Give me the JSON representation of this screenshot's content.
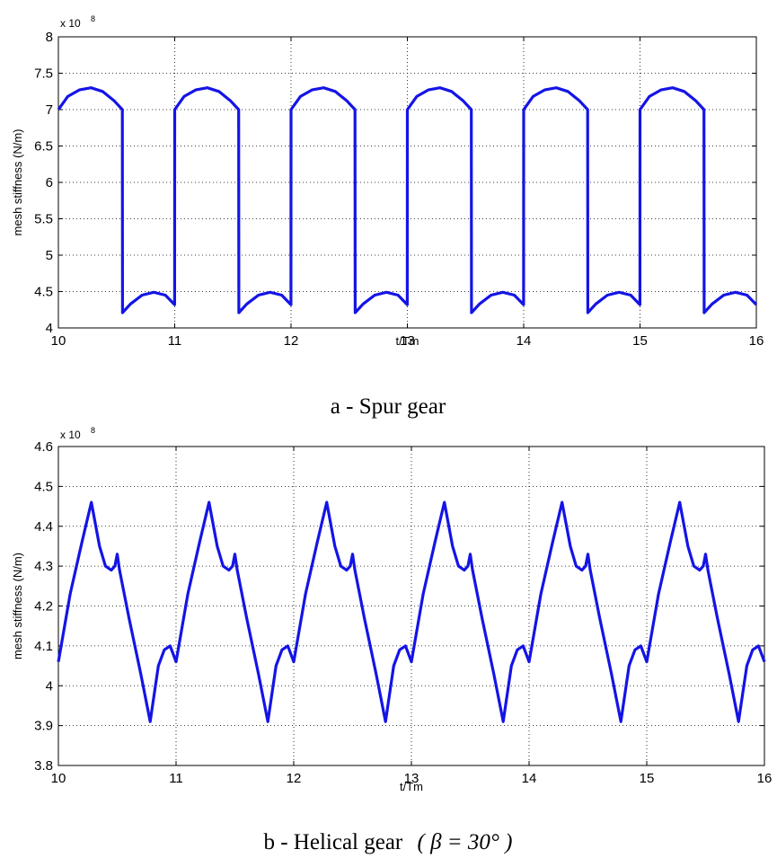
{
  "chart_data": [
    {
      "type": "line",
      "caption": "a - Spur gear",
      "xlabel": "t/Tm",
      "ylabel": "mesh stiffness (N/m)",
      "y_exponent_base": "x 10",
      "y_exponent_power": "8",
      "xlim": [
        10,
        16
      ],
      "ylim": [
        4,
        8
      ],
      "x_ticks": [
        "10",
        "11",
        "12",
        "13",
        "14",
        "15",
        "16"
      ],
      "y_ticks": [
        "4",
        "4.5",
        "5",
        "5.5",
        "6",
        "6.5",
        "7",
        "7.5",
        "8"
      ],
      "grid": true,
      "period": 1,
      "series": [
        {
          "color": "#1414e6",
          "x": [
            10.0,
            10.08,
            10.18,
            10.28,
            10.38,
            10.48,
            10.55,
            10.551,
            10.62,
            10.72,
            10.82,
            10.92,
            10.999,
            11.0,
            11.08,
            11.18,
            11.28,
            11.38,
            11.48,
            11.55,
            11.551,
            11.62,
            11.72,
            11.82,
            11.92,
            11.999,
            12.0,
            12.08,
            12.18,
            12.28,
            12.38,
            12.48,
            12.55,
            12.551,
            12.62,
            12.72,
            12.82,
            12.92,
            12.999,
            13.0,
            13.08,
            13.18,
            13.28,
            13.38,
            13.48,
            13.55,
            13.551,
            13.62,
            13.72,
            13.82,
            13.92,
            13.999,
            14.0,
            14.08,
            14.18,
            14.28,
            14.38,
            14.48,
            14.55,
            14.551,
            14.62,
            14.72,
            14.82,
            14.92,
            14.999,
            15.0,
            15.08,
            15.18,
            15.28,
            15.38,
            15.48,
            15.55,
            15.551,
            15.62,
            15.72,
            15.82,
            15.92,
            16.0
          ],
          "y": [
            7.0,
            7.18,
            7.27,
            7.3,
            7.25,
            7.12,
            7.0,
            4.21,
            4.33,
            4.45,
            4.49,
            4.45,
            4.32,
            7.0,
            7.18,
            7.27,
            7.3,
            7.25,
            7.12,
            7.0,
            4.21,
            4.33,
            4.45,
            4.49,
            4.45,
            4.32,
            7.0,
            7.18,
            7.27,
            7.3,
            7.25,
            7.12,
            7.0,
            4.21,
            4.33,
            4.45,
            4.49,
            4.45,
            4.32,
            7.0,
            7.18,
            7.27,
            7.3,
            7.25,
            7.12,
            7.0,
            4.21,
            4.33,
            4.45,
            4.49,
            4.45,
            4.32,
            7.0,
            7.18,
            7.27,
            7.3,
            7.25,
            7.12,
            7.0,
            4.21,
            4.33,
            4.45,
            4.49,
            4.45,
            4.32,
            7.0,
            7.18,
            7.27,
            7.3,
            7.25,
            7.12,
            7.0,
            4.21,
            4.33,
            4.45,
            4.49,
            4.45,
            4.32
          ]
        }
      ]
    },
    {
      "type": "line",
      "caption_text": "b - Helical gear",
      "caption_math": "( β = 30° )",
      "xlabel": "t/Tm",
      "ylabel": "mesh stiffness (N/m)",
      "y_exponent_base": "x 10",
      "y_exponent_power": "8",
      "xlim": [
        10,
        16
      ],
      "ylim": [
        3.8,
        4.6
      ],
      "x_ticks": [
        "10",
        "11",
        "12",
        "13",
        "14",
        "15",
        "16"
      ],
      "y_ticks": [
        "3.8",
        "3.9",
        "4",
        "4.1",
        "4.2",
        "4.3",
        "4.4",
        "4.5",
        "4.6"
      ],
      "grid": true,
      "series": [
        {
          "color": "#1414e6",
          "x": [
            10.0,
            10.1,
            10.2,
            10.28,
            10.35,
            10.4,
            10.45,
            10.48,
            10.5,
            10.52,
            10.6,
            10.7,
            10.78,
            10.8,
            10.85,
            10.9,
            10.95,
            11.0,
            11.1,
            11.2,
            11.28,
            11.35,
            11.4,
            11.45,
            11.48,
            11.5,
            11.52,
            11.6,
            11.7,
            11.78,
            11.8,
            11.85,
            11.9,
            11.95,
            12.0,
            12.1,
            12.2,
            12.28,
            12.35,
            12.4,
            12.45,
            12.48,
            12.5,
            12.52,
            12.6,
            12.7,
            12.78,
            12.8,
            12.85,
            12.9,
            12.95,
            13.0,
            13.1,
            13.2,
            13.28,
            13.35,
            13.4,
            13.45,
            13.48,
            13.5,
            13.52,
            13.6,
            13.7,
            13.78,
            13.8,
            13.85,
            13.9,
            13.95,
            14.0,
            14.1,
            14.2,
            14.28,
            14.35,
            14.4,
            14.45,
            14.48,
            14.5,
            14.52,
            14.6,
            14.7,
            14.78,
            14.8,
            14.85,
            14.9,
            14.95,
            15.0,
            15.1,
            15.2,
            15.28,
            15.35,
            15.4,
            15.45,
            15.48,
            15.5,
            15.52,
            15.6,
            15.7,
            15.78,
            15.8,
            15.85,
            15.9,
            15.95,
            16.0
          ],
          "y": [
            4.06,
            4.23,
            4.36,
            4.46,
            4.35,
            4.3,
            4.29,
            4.3,
            4.33,
            4.29,
            4.17,
            4.03,
            3.91,
            3.95,
            4.05,
            4.09,
            4.1,
            4.06,
            4.23,
            4.36,
            4.46,
            4.35,
            4.3,
            4.29,
            4.3,
            4.33,
            4.29,
            4.17,
            4.03,
            3.91,
            3.95,
            4.05,
            4.09,
            4.1,
            4.06,
            4.23,
            4.36,
            4.46,
            4.35,
            4.3,
            4.29,
            4.3,
            4.33,
            4.29,
            4.17,
            4.03,
            3.91,
            3.95,
            4.05,
            4.09,
            4.1,
            4.06,
            4.23,
            4.36,
            4.46,
            4.35,
            4.3,
            4.29,
            4.3,
            4.33,
            4.29,
            4.17,
            4.03,
            3.91,
            3.95,
            4.05,
            4.09,
            4.1,
            4.06,
            4.23,
            4.36,
            4.46,
            4.35,
            4.3,
            4.29,
            4.3,
            4.33,
            4.29,
            4.17,
            4.03,
            3.91,
            3.95,
            4.05,
            4.09,
            4.1,
            4.06,
            4.23,
            4.36,
            4.46,
            4.35,
            4.3,
            4.29,
            4.3,
            4.33,
            4.29,
            4.17,
            4.03,
            3.91,
            3.95,
            4.05,
            4.09,
            4.1,
            4.06
          ]
        }
      ]
    }
  ]
}
